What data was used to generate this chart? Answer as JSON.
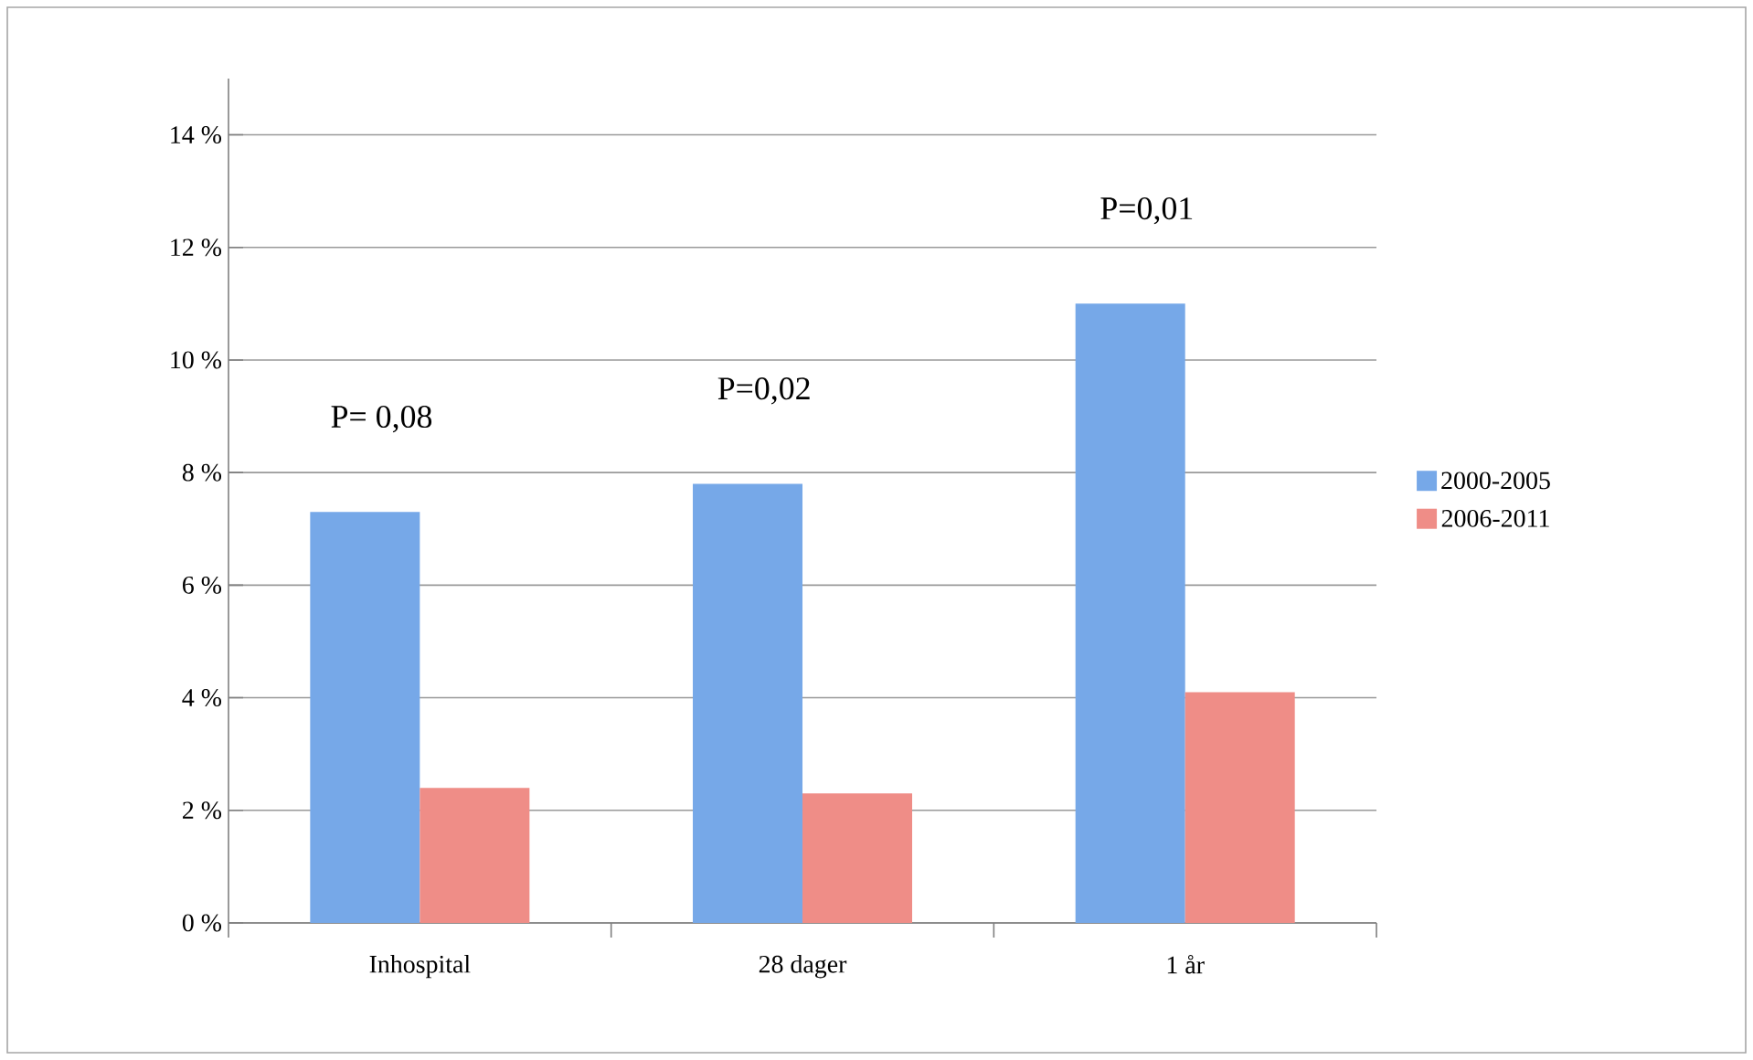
{
  "chart_data": {
    "type": "bar",
    "categories": [
      "Inhospital",
      "28 dager",
      "1 år"
    ],
    "series": [
      {
        "name": "2000-2005",
        "color": "#76a8e8",
        "values": [
          7.3,
          7.8,
          11.0
        ]
      },
      {
        "name": "2006-2011",
        "color": "#ef8d87",
        "values": [
          2.4,
          2.3,
          4.1
        ]
      }
    ],
    "ylim": [
      0,
      15
    ],
    "yticks": [
      {
        "value": 0,
        "label": "0 %"
      },
      {
        "value": 2,
        "label": "2 %"
      },
      {
        "value": 4,
        "label": "4 %"
      },
      {
        "value": 6,
        "label": "6 %"
      },
      {
        "value": 8,
        "label": "8 %"
      },
      {
        "value": 10,
        "label": "10 %"
      },
      {
        "value": 12,
        "label": "12 %"
      },
      {
        "value": 14,
        "label": "14 %"
      }
    ],
    "annotations": [
      "P= 0,08",
      "P=0,02",
      "P=0,01"
    ],
    "grid": "y",
    "legend": "right"
  }
}
